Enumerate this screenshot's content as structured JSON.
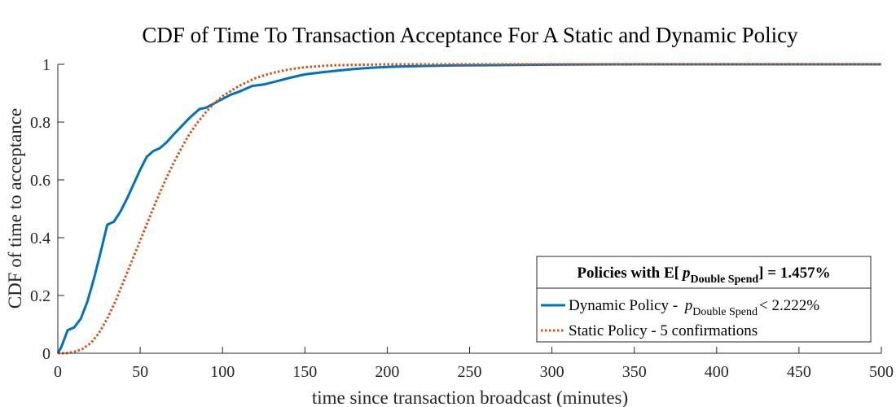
{
  "chart_data": {
    "type": "line",
    "title": "CDF of Time To Transaction Acceptance For A Static and Dynamic Policy",
    "xlabel": "time since transaction broadcast (minutes)",
    "ylabel": "CDF of time to acceptance",
    "xlim": [
      0,
      500
    ],
    "ylim": [
      0,
      1
    ],
    "xticks": [
      0,
      50,
      100,
      150,
      200,
      250,
      300,
      350,
      400,
      450,
      500
    ],
    "yticks": [
      0,
      0.2,
      0.4,
      0.6,
      0.8,
      1
    ],
    "xtick_labels": [
      "0",
      "50",
      "100",
      "150",
      "200",
      "250",
      "300",
      "350",
      "400",
      "450",
      "500"
    ],
    "ytick_labels": [
      "0",
      "0.2",
      "0.4",
      "0.6",
      "0.8",
      "1"
    ],
    "grid": false,
    "legend": {
      "placement": "bottom-right",
      "title_prefix": "Policies with E[",
      "title_p": "p",
      "title_sub": "Double Spend",
      "title_suffix": "]  = 1.457%",
      "dynamic_label": "Dynamic Policy - ",
      "dynamic_p": "p",
      "dynamic_sub": "Double Spend",
      "dynamic_suffix": "< 2.222%",
      "static_label": "Static Policy - 5 confirmations"
    },
    "series": [
      {
        "key": "dynamic",
        "color": "#0072BD",
        "style": "solid",
        "x": [
          0,
          2,
          4,
          6,
          10,
          14,
          18,
          22,
          26,
          30,
          34,
          38,
          42,
          46,
          50,
          54,
          58,
          62,
          66,
          70,
          75,
          80,
          86,
          90,
          95,
          100,
          105,
          110,
          118,
          125,
          132,
          140,
          150,
          160,
          170,
          180,
          190,
          200,
          220,
          240,
          260,
          280,
          300,
          350,
          400,
          450,
          500
        ],
        "y": [
          0,
          0.02,
          0.05,
          0.08,
          0.09,
          0.12,
          0.18,
          0.26,
          0.35,
          0.445,
          0.455,
          0.49,
          0.535,
          0.585,
          0.635,
          0.68,
          0.7,
          0.71,
          0.73,
          0.755,
          0.785,
          0.815,
          0.845,
          0.85,
          0.865,
          0.88,
          0.895,
          0.905,
          0.925,
          0.93,
          0.94,
          0.952,
          0.965,
          0.972,
          0.978,
          0.984,
          0.988,
          0.991,
          0.994,
          0.996,
          0.997,
          0.998,
          0.999,
          1.0,
          1.0,
          1.0,
          1.0
        ]
      },
      {
        "key": "static",
        "color": "#D95319",
        "style": "dotted",
        "x": [
          0,
          5,
          10,
          15,
          20,
          25,
          30,
          35,
          40,
          45,
          50,
          55,
          60,
          65,
          70,
          75,
          80,
          85,
          90,
          95,
          100,
          110,
          120,
          130,
          140,
          150,
          160,
          170,
          180,
          190,
          200,
          220,
          250,
          300,
          350,
          400,
          450,
          500
        ],
        "y": [
          0,
          0.0,
          0.005,
          0.015,
          0.035,
          0.07,
          0.12,
          0.18,
          0.25,
          0.32,
          0.39,
          0.46,
          0.53,
          0.595,
          0.655,
          0.71,
          0.76,
          0.8,
          0.835,
          0.865,
          0.89,
          0.925,
          0.952,
          0.97,
          0.982,
          0.99,
          0.994,
          0.997,
          0.998,
          0.999,
          1.0,
          1.0,
          1.0,
          1.0,
          1.0,
          1.0,
          1.0,
          1.0
        ]
      }
    ]
  }
}
